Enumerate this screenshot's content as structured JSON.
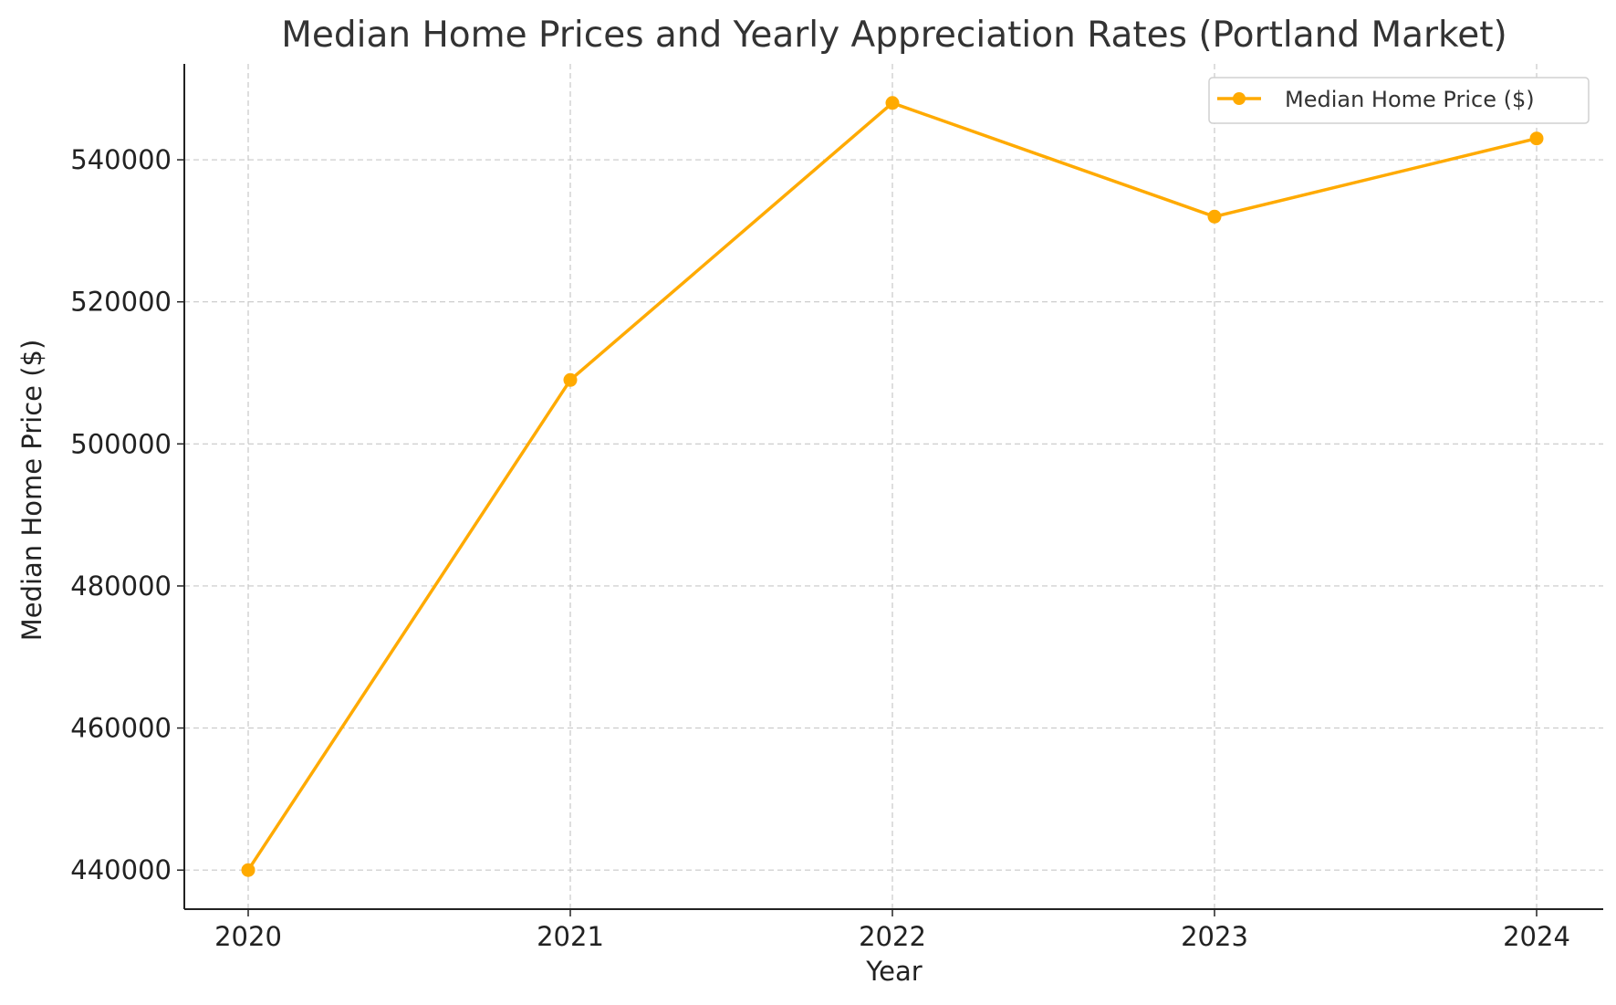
{
  "chart_data": {
    "type": "line",
    "title": "Median Home Prices and Yearly Appreciation Rates (Portland Market)",
    "xlabel": "Year",
    "ylabel": "Median Home Price ($)",
    "x": [
      "2020",
      "2021",
      "2022",
      "2023",
      "2024"
    ],
    "series": [
      {
        "name": "Median Home Price ($)",
        "values": [
          440000,
          509000,
          548000,
          532000,
          543000
        ],
        "color": "#FFAA00",
        "marker": "circle"
      }
    ],
    "yticks": [
      440000,
      460000,
      480000,
      500000,
      520000,
      540000
    ],
    "ylim": [
      434500,
      553500
    ],
    "grid": true,
    "legend_position": "top-right"
  }
}
